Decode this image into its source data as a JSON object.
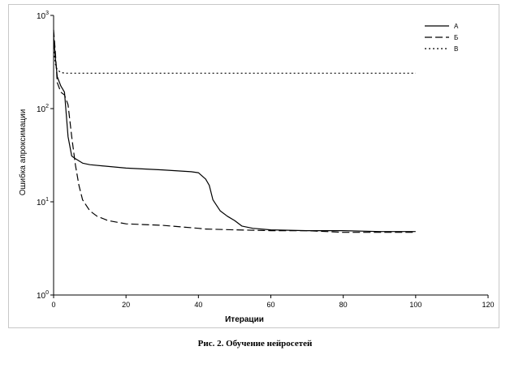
{
  "chart_data": {
    "type": "line",
    "ylabel": "Ошибка апроксимации",
    "xlabel": "Итерации",
    "xlim": [
      0,
      120
    ],
    "x_ticks": [
      0,
      20,
      40,
      60,
      80,
      100,
      120
    ],
    "x_tick_labels": [
      "0",
      "20",
      "40",
      "60",
      "80",
      "100",
      "120"
    ],
    "y_scale": "log",
    "ylim": [
      1,
      1000
    ],
    "y_ticks": [
      1,
      10,
      100,
      1000
    ],
    "y_tick_labels": [
      {
        "base": "10",
        "exp": "0"
      },
      {
        "base": "10",
        "exp": "1"
      },
      {
        "base": "10",
        "exp": "2"
      },
      {
        "base": "10",
        "exp": "3"
      }
    ],
    "grid": false,
    "legend_position": "top-right",
    "series": [
      {
        "name": "А",
        "style": "solid",
        "color": "#000000",
        "points": [
          [
            0,
            600
          ],
          [
            0.5,
            350
          ],
          [
            1,
            220
          ],
          [
            2,
            175
          ],
          [
            3,
            150
          ],
          [
            4,
            50
          ],
          [
            5,
            31
          ],
          [
            6,
            29
          ],
          [
            8,
            26
          ],
          [
            10,
            25
          ],
          [
            20,
            23
          ],
          [
            30,
            22
          ],
          [
            38,
            21
          ],
          [
            40,
            20.5
          ],
          [
            42,
            17.5
          ],
          [
            43,
            15
          ],
          [
            44,
            10.5
          ],
          [
            46,
            8
          ],
          [
            48,
            7
          ],
          [
            50,
            6.3
          ],
          [
            52,
            5.5
          ],
          [
            55,
            5.2
          ],
          [
            60,
            5
          ],
          [
            70,
            4.9
          ],
          [
            80,
            4.9
          ],
          [
            90,
            4.8
          ],
          [
            100,
            4.8
          ]
        ]
      },
      {
        "name": "Б",
        "style": "dashed",
        "color": "#000000",
        "points": [
          [
            0,
            700
          ],
          [
            0.5,
            400
          ],
          [
            1,
            190
          ],
          [
            2,
            150
          ],
          [
            3,
            140
          ],
          [
            4,
            110
          ],
          [
            5,
            50
          ],
          [
            6,
            25
          ],
          [
            7,
            15
          ],
          [
            8,
            10.5
          ],
          [
            10,
            8
          ],
          [
            12,
            7
          ],
          [
            15,
            6.3
          ],
          [
            20,
            5.8
          ],
          [
            30,
            5.6
          ],
          [
            40,
            5.2
          ],
          [
            42,
            5.1
          ],
          [
            50,
            5
          ],
          [
            60,
            4.9
          ],
          [
            70,
            4.9
          ],
          [
            80,
            4.7
          ],
          [
            90,
            4.7
          ],
          [
            100,
            4.7
          ]
        ]
      },
      {
        "name": "В",
        "style": "dotted",
        "color": "#000000",
        "points": [
          [
            0,
            450
          ],
          [
            0.5,
            300
          ],
          [
            1,
            260
          ],
          [
            2,
            245
          ],
          [
            3,
            240
          ],
          [
            5,
            240
          ],
          [
            20,
            240
          ],
          [
            40,
            240
          ],
          [
            60,
            240
          ],
          [
            80,
            240
          ],
          [
            100,
            240
          ]
        ]
      }
    ]
  },
  "caption": "Рис. 2. Обучение нейросетей"
}
